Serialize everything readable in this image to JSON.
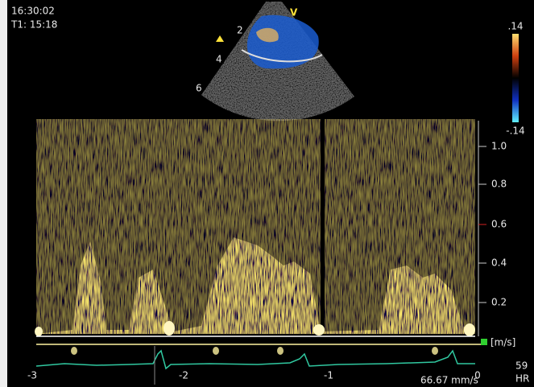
{
  "header": {
    "time": "16:30:02",
    "t1": "T1: 15:18"
  },
  "sector": {
    "label": "V",
    "depths": [
      "2",
      "4",
      "6"
    ]
  },
  "color_scale": {
    "top": ".14",
    "bottom": "-.14"
  },
  "velocity_axis": {
    "ticks": [
      "1.0",
      "0.8",
      "0.6",
      "0.4",
      "0.2"
    ],
    "unit": "[m/s]"
  },
  "time_axis": {
    "ticks": [
      "-3",
      "-2",
      "-1",
      "0"
    ],
    "sweep": "66.67 mm/s"
  },
  "heart_rate": {
    "value": "59",
    "label": "HR"
  }
}
